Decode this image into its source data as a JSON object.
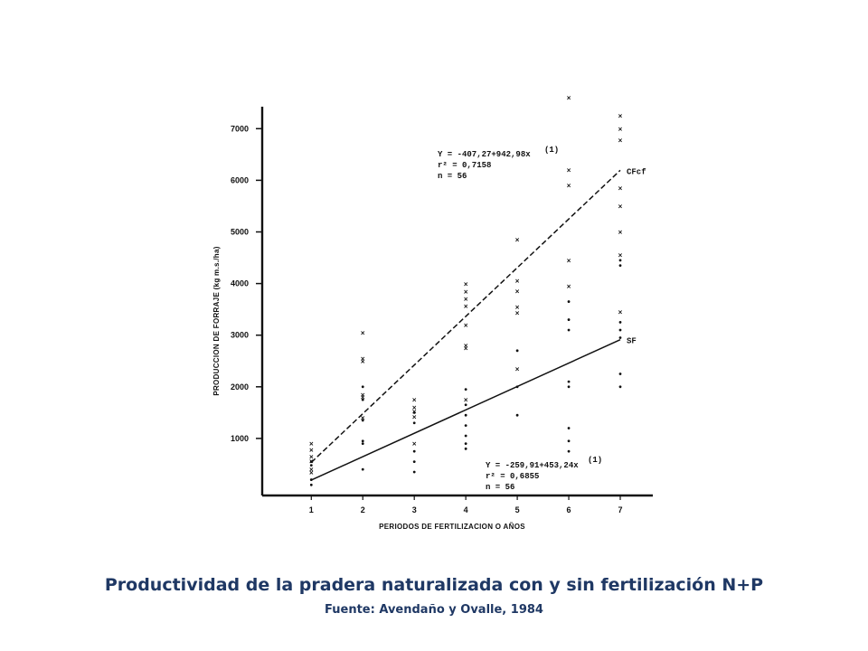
{
  "caption": {
    "title": "Productividad de la pradera naturalizada con y sin fertilización N+P",
    "source": "Fuente: Avendaño y Ovalle, 1984"
  },
  "chart_data": {
    "type": "scatter",
    "xlabel": "PERIODOS DE FERTILIZACION O AÑOS",
    "ylabel": "PRODUCCION DE FORRAJE (kg m.s./ha)",
    "x_ticks": [
      1,
      2,
      3,
      4,
      5,
      6,
      7
    ],
    "y_ticks": [
      1000,
      2000,
      3000,
      4000,
      5000,
      6000,
      7000
    ],
    "xlim": [
      0.2,
      7.6
    ],
    "ylim": [
      0,
      7500
    ],
    "grid": false,
    "series": [
      {
        "name": "CFcf",
        "marker": "x",
        "line": "dashed",
        "regression": {
          "intercept": -407.27,
          "slope": 942.98
        },
        "equation_lines": [
          "Y = -407,27+942,98x",
          "r² = 0,7158",
          "n = 56"
        ],
        "equation_ref": "(1)",
        "points": [
          [
            1,
            900
          ],
          [
            1,
            780
          ],
          [
            1,
            650
          ],
          [
            1,
            560
          ],
          [
            1,
            400
          ],
          [
            1,
            340
          ],
          [
            2,
            3050
          ],
          [
            2,
            2550
          ],
          [
            2,
            2500
          ],
          [
            2,
            1850
          ],
          [
            2,
            1800
          ],
          [
            2,
            1400
          ],
          [
            3,
            1750
          ],
          [
            3,
            1600
          ],
          [
            3,
            1520
          ],
          [
            3,
            1420
          ],
          [
            3,
            900
          ],
          [
            4,
            3990
          ],
          [
            4,
            3840
          ],
          [
            4,
            3700
          ],
          [
            4,
            3560
          ],
          [
            4,
            3200
          ],
          [
            4,
            2800
          ],
          [
            4,
            2750
          ],
          [
            4,
            1750
          ],
          [
            5,
            4850
          ],
          [
            5,
            4050
          ],
          [
            5,
            3850
          ],
          [
            5,
            3550
          ],
          [
            5,
            3430
          ],
          [
            5,
            2350
          ],
          [
            6,
            7600
          ],
          [
            6,
            6200
          ],
          [
            6,
            5900
          ],
          [
            6,
            4450
          ],
          [
            6,
            3950
          ],
          [
            7,
            7250
          ],
          [
            7,
            7000
          ],
          [
            7,
            6780
          ],
          [
            7,
            5850
          ],
          [
            7,
            5500
          ],
          [
            7,
            5000
          ],
          [
            7,
            4550
          ],
          [
            7,
            3450
          ]
        ]
      },
      {
        "name": "SF",
        "marker": "dot",
        "line": "solid",
        "regression": {
          "intercept": -259.91,
          "slope": 453.24
        },
        "equation_lines": [
          "Y = -259,91+453,24x",
          "r² = 0,6855",
          "n = 56"
        ],
        "equation_ref": "(1)",
        "points": [
          [
            1,
            550
          ],
          [
            1,
            480
          ],
          [
            1,
            200
          ],
          [
            1,
            100
          ],
          [
            2,
            2000
          ],
          [
            2,
            1750
          ],
          [
            2,
            1350
          ],
          [
            2,
            950
          ],
          [
            2,
            900
          ],
          [
            2,
            400
          ],
          [
            3,
            1500
          ],
          [
            3,
            1300
          ],
          [
            3,
            750
          ],
          [
            3,
            550
          ],
          [
            3,
            350
          ],
          [
            4,
            1950
          ],
          [
            4,
            1650
          ],
          [
            4,
            1450
          ],
          [
            4,
            1250
          ],
          [
            4,
            1050
          ],
          [
            4,
            900
          ],
          [
            4,
            800
          ],
          [
            5,
            2700
          ],
          [
            5,
            2000
          ],
          [
            5,
            1450
          ],
          [
            6,
            3650
          ],
          [
            6,
            3300
          ],
          [
            6,
            3100
          ],
          [
            6,
            2100
          ],
          [
            6,
            2000
          ],
          [
            6,
            1200
          ],
          [
            6,
            950
          ],
          [
            6,
            750
          ],
          [
            7,
            4450
          ],
          [
            7,
            4350
          ],
          [
            7,
            3250
          ],
          [
            7,
            3100
          ],
          [
            7,
            2950
          ],
          [
            7,
            2250
          ],
          [
            7,
            2000
          ]
        ]
      }
    ]
  }
}
